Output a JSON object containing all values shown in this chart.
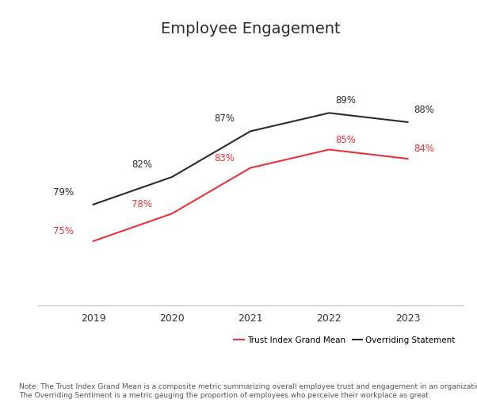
{
  "title": "Employee Engagement",
  "years": [
    2019,
    2020,
    2021,
    2022,
    2023
  ],
  "trust_index": [
    75,
    78,
    83,
    85,
    84
  ],
  "overriding": [
    79,
    82,
    87,
    89,
    88
  ],
  "trust_color": "#e8333a",
  "overriding_color": "#2b2b2b",
  "trust_label": "Trust Index Grand Mean",
  "overriding_label": "Overriding Statement",
  "note_line1": "Note: The Trust Index Grand Mean is a composite metric summarizing overall employee trust and engagement in an organization.",
  "note_line2": "The Overriding Sentiment is a metric gauging the proportion of employees who perceive their workplace as great.",
  "background_color": "#ffffff",
  "title_fontsize": 14,
  "data_fontsize": 8.5,
  "note_fontsize": 6.5,
  "axis_fontsize": 9
}
